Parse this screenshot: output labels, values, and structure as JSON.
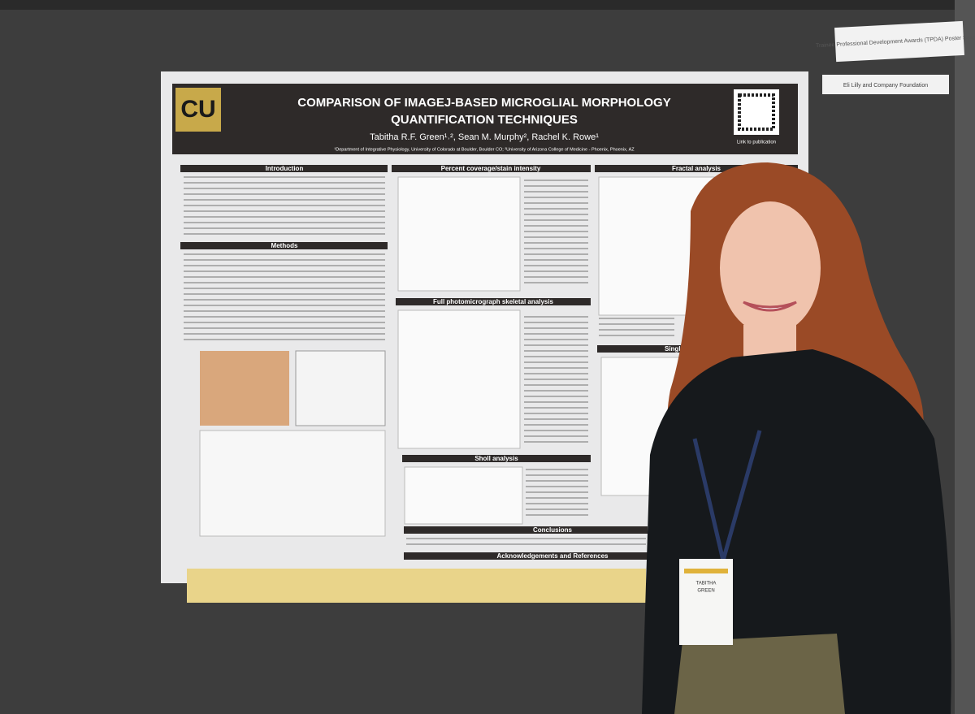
{
  "poster": {
    "title_line1": "COMPARISON OF IMAGEJ-BASED MICROGLIAL MORPHOLOGY",
    "title_line2": "QUANTIFICATION TECHNIQUES",
    "authors": "Tabitha R.F. Green¹˒², Sean M. Murphy², Rachel K. Rowe¹",
    "affiliations": "¹Department of Integrative Physiology, University of Colorado at Boulder, Boulder CO; ²University of Arizona College of Medicine - Phoenix, Phoenix, AZ",
    "qr_caption": "Link to publication",
    "sections": [
      "Introduction",
      "Methods",
      "Percent coverage/stain intensity",
      "Full photomicrograph skeletal analysis",
      "Sholl analysis",
      "Fractal analysis",
      "Single",
      "Conclusions",
      "Acknowledgements and References"
    ]
  },
  "signs": [
    "Trainee Professional Development Awards (TPDA) Poster Session",
    "Eli Lilly and Company Foundation"
  ],
  "badge": {
    "name_line1": "TABITHA",
    "name_line2": "GREEN"
  }
}
